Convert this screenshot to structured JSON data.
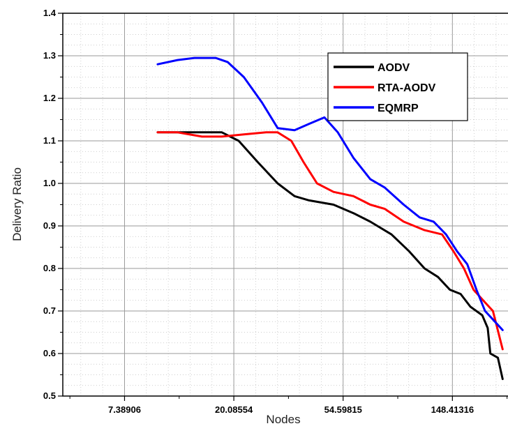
{
  "chart_data": {
    "type": "line",
    "xlabel": "Nodes",
    "ylabel": "Delivery Ratio",
    "x_scale": "log",
    "xlim": [
      4.2,
      250
    ],
    "ylim": [
      0.5,
      1.4
    ],
    "x_ticks": [
      7.38906,
      20.08554,
      54.59815,
      148.41316
    ],
    "x_tick_labels": [
      "7.38906",
      "20.08554",
      "54.59815",
      "148.41316"
    ],
    "y_ticks": [
      0.5,
      0.6,
      0.7,
      0.8,
      0.9,
      1.0,
      1.1,
      1.2,
      1.3,
      1.4
    ],
    "y_tick_labels": [
      "0.5",
      "0.6",
      "0.7",
      "0.8",
      "0.9",
      "1.0",
      "1.1",
      "1.2",
      "1.3",
      "1.4"
    ],
    "grid": true,
    "legend_position": "top-right",
    "series": [
      {
        "name": "AODV",
        "color": "#000000",
        "points": [
          [
            10,
            1.12
          ],
          [
            12,
            1.12
          ],
          [
            15,
            1.12
          ],
          [
            18,
            1.12
          ],
          [
            21,
            1.1
          ],
          [
            25,
            1.05
          ],
          [
            30,
            1.0
          ],
          [
            35,
            0.97
          ],
          [
            40,
            0.96
          ],
          [
            50,
            0.95
          ],
          [
            60,
            0.93
          ],
          [
            70,
            0.91
          ],
          [
            85,
            0.88
          ],
          [
            100,
            0.84
          ],
          [
            115,
            0.8
          ],
          [
            130,
            0.78
          ],
          [
            145,
            0.75
          ],
          [
            160,
            0.74
          ],
          [
            175,
            0.71
          ],
          [
            195,
            0.69
          ],
          [
            205,
            0.66
          ],
          [
            210,
            0.6
          ],
          [
            225,
            0.59
          ],
          [
            235,
            0.54
          ]
        ]
      },
      {
        "name": "RTA-AODV",
        "color": "#ff0000",
        "points": [
          [
            10,
            1.12
          ],
          [
            12,
            1.12
          ],
          [
            15,
            1.11
          ],
          [
            18,
            1.11
          ],
          [
            22,
            1.115
          ],
          [
            27,
            1.12
          ],
          [
            30,
            1.12
          ],
          [
            34,
            1.1
          ],
          [
            38,
            1.05
          ],
          [
            43,
            1.0
          ],
          [
            50,
            0.98
          ],
          [
            60,
            0.97
          ],
          [
            70,
            0.95
          ],
          [
            80,
            0.94
          ],
          [
            95,
            0.91
          ],
          [
            115,
            0.89
          ],
          [
            135,
            0.88
          ],
          [
            150,
            0.84
          ],
          [
            165,
            0.8
          ],
          [
            180,
            0.75
          ],
          [
            200,
            0.72
          ],
          [
            215,
            0.7
          ],
          [
            235,
            0.61
          ]
        ]
      },
      {
        "name": "EQMRP",
        "color": "#0000ff",
        "points": [
          [
            10,
            1.28
          ],
          [
            12,
            1.29
          ],
          [
            14,
            1.295
          ],
          [
            17,
            1.295
          ],
          [
            19,
            1.285
          ],
          [
            22,
            1.25
          ],
          [
            26,
            1.19
          ],
          [
            30,
            1.13
          ],
          [
            35,
            1.125
          ],
          [
            40,
            1.14
          ],
          [
            46,
            1.155
          ],
          [
            52,
            1.12
          ],
          [
            60,
            1.06
          ],
          [
            70,
            1.01
          ],
          [
            80,
            0.99
          ],
          [
            95,
            0.95
          ],
          [
            110,
            0.92
          ],
          [
            125,
            0.91
          ],
          [
            140,
            0.88
          ],
          [
            155,
            0.84
          ],
          [
            170,
            0.81
          ],
          [
            185,
            0.75
          ],
          [
            200,
            0.7
          ],
          [
            215,
            0.68
          ],
          [
            235,
            0.655
          ]
        ]
      }
    ]
  }
}
